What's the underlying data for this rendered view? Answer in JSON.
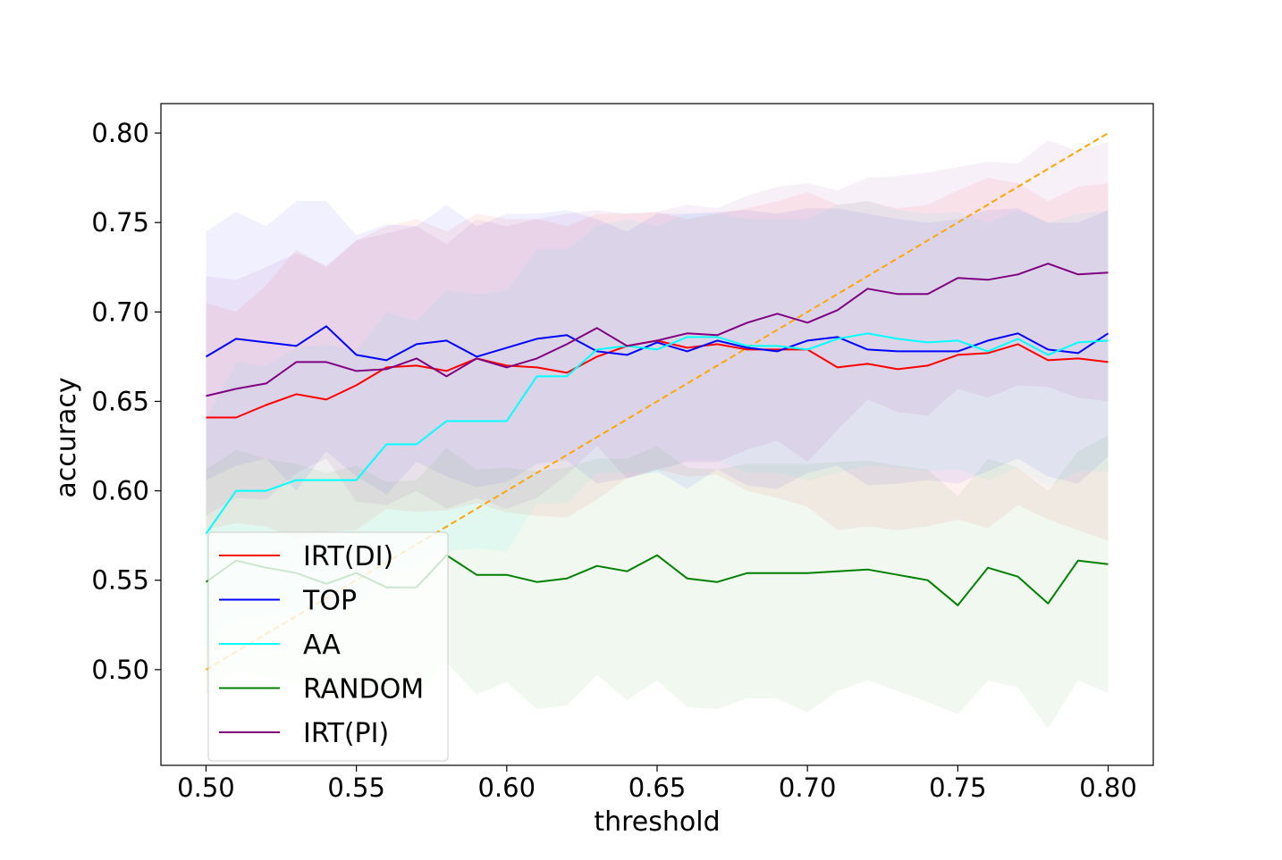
{
  "chart_data": {
    "type": "line",
    "title": "",
    "xlabel": "threshold",
    "ylabel": "accuracy",
    "xlim": [
      0.485,
      0.815
    ],
    "ylim": [
      0.4465,
      0.8165
    ],
    "xticks": [
      "0.50",
      "0.55",
      "0.60",
      "0.65",
      "0.70",
      "0.75",
      "0.80"
    ],
    "yticks": [
      "0.50",
      "0.55",
      "0.60",
      "0.65",
      "0.70",
      "0.75",
      "0.80"
    ],
    "grid": false,
    "legend_position": "lower-left",
    "x": [
      0.5,
      0.51,
      0.52,
      0.53,
      0.54,
      0.55,
      0.56,
      0.57,
      0.58,
      0.59,
      0.6,
      0.61,
      0.62,
      0.63,
      0.64,
      0.65,
      0.66,
      0.67,
      0.68,
      0.69,
      0.7,
      0.71,
      0.72,
      0.73,
      0.74,
      0.75,
      0.76,
      0.77,
      0.78,
      0.79,
      0.8
    ],
    "series": [
      {
        "name": "IRT(DI)",
        "color": "#ff0000",
        "values": [
          0.641,
          0.641,
          0.648,
          0.654,
          0.651,
          0.659,
          0.669,
          0.67,
          0.667,
          0.674,
          0.67,
          0.669,
          0.666,
          0.675,
          0.681,
          0.684,
          0.68,
          0.682,
          0.679,
          0.679,
          0.679,
          0.669,
          0.671,
          0.668,
          0.67,
          0.676,
          0.677,
          0.682,
          0.673,
          0.674,
          0.672
        ],
        "upper": [
          0.705,
          0.7,
          0.715,
          0.735,
          0.725,
          0.74,
          0.748,
          0.752,
          0.745,
          0.755,
          0.752,
          0.752,
          0.748,
          0.755,
          0.755,
          0.756,
          0.752,
          0.755,
          0.758,
          0.762,
          0.767,
          0.76,
          0.762,
          0.758,
          0.76,
          0.768,
          0.775,
          0.772,
          0.762,
          0.77,
          0.772
        ],
        "lower": [
          0.578,
          0.582,
          0.58,
          0.573,
          0.577,
          0.578,
          0.59,
          0.588,
          0.589,
          0.593,
          0.588,
          0.586,
          0.585,
          0.595,
          0.607,
          0.612,
          0.608,
          0.609,
          0.6,
          0.596,
          0.591,
          0.578,
          0.58,
          0.578,
          0.58,
          0.584,
          0.579,
          0.592,
          0.584,
          0.578,
          0.572
        ]
      },
      {
        "name": "TOP",
        "color": "#0000ff",
        "values": [
          0.675,
          0.685,
          0.683,
          0.681,
          0.692,
          0.676,
          0.673,
          0.682,
          0.684,
          0.675,
          0.68,
          0.685,
          0.687,
          0.678,
          0.676,
          0.683,
          0.678,
          0.684,
          0.68,
          0.678,
          0.684,
          0.686,
          0.679,
          0.678,
          0.678,
          0.678,
          0.684,
          0.688,
          0.679,
          0.677,
          0.688
        ],
        "upper": [
          0.745,
          0.756,
          0.748,
          0.762,
          0.762,
          0.743,
          0.749,
          0.748,
          0.76,
          0.748,
          0.755,
          0.755,
          0.757,
          0.752,
          0.745,
          0.755,
          0.755,
          0.756,
          0.757,
          0.755,
          0.758,
          0.758,
          0.755,
          0.752,
          0.75,
          0.752,
          0.757,
          0.758,
          0.75,
          0.75,
          0.757
        ],
        "lower": [
          0.606,
          0.614,
          0.618,
          0.6,
          0.622,
          0.608,
          0.598,
          0.616,
          0.608,
          0.602,
          0.605,
          0.615,
          0.617,
          0.604,
          0.607,
          0.611,
          0.601,
          0.612,
          0.603,
          0.601,
          0.61,
          0.614,
          0.603,
          0.604,
          0.606,
          0.604,
          0.611,
          0.618,
          0.608,
          0.604,
          0.619
        ]
      },
      {
        "name": "AA",
        "color": "#00ffff",
        "values": [
          0.576,
          0.6,
          0.6,
          0.606,
          0.606,
          0.606,
          0.626,
          0.626,
          0.639,
          0.639,
          0.639,
          0.664,
          0.664,
          0.679,
          0.681,
          0.679,
          0.686,
          0.686,
          0.681,
          0.681,
          0.679,
          0.685,
          0.688,
          0.685,
          0.683,
          0.684,
          0.678,
          0.685,
          0.676,
          0.683,
          0.684
        ],
        "upper": [
          0.64,
          0.672,
          0.67,
          0.68,
          0.682,
          0.678,
          0.7,
          0.695,
          0.712,
          0.71,
          0.712,
          0.735,
          0.735,
          0.748,
          0.752,
          0.748,
          0.755,
          0.755,
          0.752,
          0.752,
          0.752,
          0.76,
          0.762,
          0.757,
          0.755,
          0.756,
          0.75,
          0.757,
          0.75,
          0.755,
          0.757
        ],
        "lower": [
          0.512,
          0.528,
          0.53,
          0.532,
          0.53,
          0.534,
          0.552,
          0.557,
          0.566,
          0.568,
          0.566,
          0.593,
          0.593,
          0.61,
          0.61,
          0.61,
          0.617,
          0.617,
          0.61,
          0.61,
          0.606,
          0.61,
          0.614,
          0.613,
          0.611,
          0.612,
          0.606,
          0.613,
          0.602,
          0.611,
          0.611
        ]
      },
      {
        "name": "RANDOM",
        "color": "#008000",
        "values": [
          0.549,
          0.561,
          0.557,
          0.554,
          0.548,
          0.554,
          0.546,
          0.546,
          0.564,
          0.553,
          0.553,
          0.549,
          0.551,
          0.558,
          0.555,
          0.564,
          0.551,
          0.549,
          0.554,
          0.554,
          0.554,
          0.555,
          0.556,
          0.553,
          0.55,
          0.536,
          0.557,
          0.552,
          0.537,
          0.561,
          0.559
        ],
        "upper": [
          0.612,
          0.623,
          0.618,
          0.615,
          0.61,
          0.614,
          0.605,
          0.606,
          0.624,
          0.612,
          0.613,
          0.611,
          0.613,
          0.618,
          0.618,
          0.625,
          0.613,
          0.612,
          0.615,
          0.615,
          0.615,
          0.616,
          0.617,
          0.614,
          0.612,
          0.597,
          0.618,
          0.613,
          0.6,
          0.622,
          0.631
        ],
        "lower": [
          0.486,
          0.499,
          0.496,
          0.493,
          0.486,
          0.494,
          0.487,
          0.486,
          0.504,
          0.486,
          0.493,
          0.478,
          0.48,
          0.497,
          0.483,
          0.494,
          0.479,
          0.478,
          0.484,
          0.484,
          0.476,
          0.488,
          0.494,
          0.488,
          0.482,
          0.475,
          0.494,
          0.49,
          0.467,
          0.494,
          0.487
        ]
      },
      {
        "name": "IRT(PI)",
        "color": "#800080",
        "values": [
          0.653,
          0.657,
          0.66,
          0.672,
          0.672,
          0.667,
          0.668,
          0.674,
          0.664,
          0.674,
          0.669,
          0.674,
          0.682,
          0.691,
          0.681,
          0.684,
          0.688,
          0.687,
          0.694,
          0.699,
          0.694,
          0.701,
          0.713,
          0.71,
          0.71,
          0.719,
          0.718,
          0.721,
          0.727,
          0.721,
          0.722
        ],
        "upper": [
          0.72,
          0.718,
          0.725,
          0.733,
          0.726,
          0.74,
          0.744,
          0.748,
          0.738,
          0.752,
          0.748,
          0.752,
          0.755,
          0.757,
          0.755,
          0.756,
          0.76,
          0.758,
          0.765,
          0.77,
          0.772,
          0.768,
          0.775,
          0.776,
          0.778,
          0.781,
          0.784,
          0.783,
          0.796,
          0.79,
          0.795
        ],
        "lower": [
          0.586,
          0.596,
          0.595,
          0.61,
          0.618,
          0.594,
          0.592,
          0.6,
          0.59,
          0.596,
          0.59,
          0.596,
          0.609,
          0.625,
          0.607,
          0.612,
          0.616,
          0.616,
          0.623,
          0.628,
          0.616,
          0.634,
          0.651,
          0.644,
          0.642,
          0.657,
          0.652,
          0.659,
          0.658,
          0.652,
          0.65
        ]
      }
    ],
    "reference_line": {
      "color": "#ffa500",
      "style": "dashed",
      "x": [
        0.5,
        0.8
      ],
      "y": [
        0.5,
        0.8
      ]
    }
  }
}
